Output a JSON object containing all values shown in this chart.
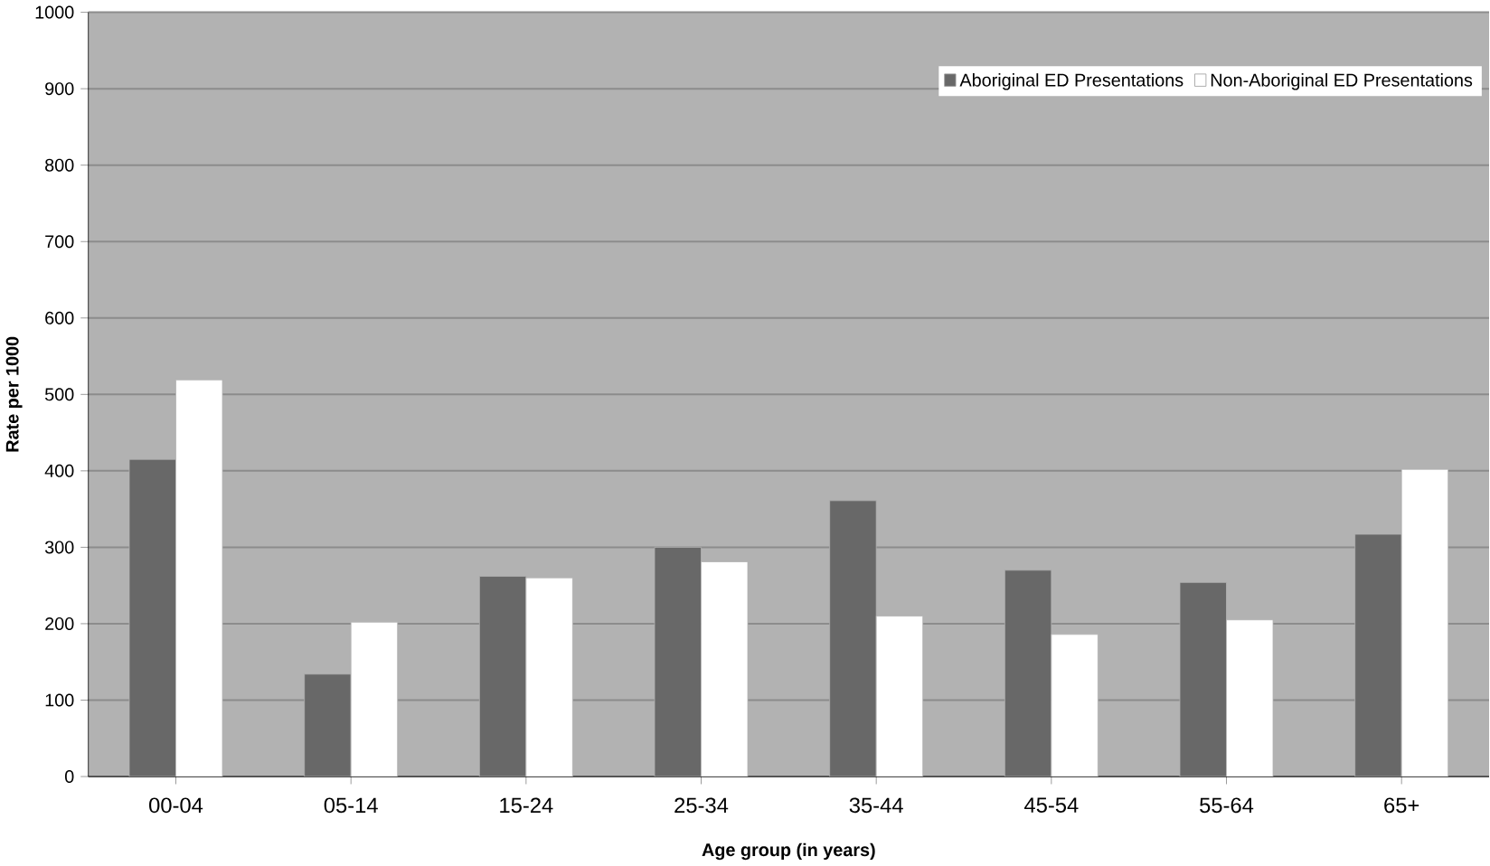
{
  "chart_data": {
    "type": "bar",
    "xlabel": "Age group (in years)",
    "ylabel": "Rate per 1000",
    "categories": [
      "00-04",
      "05-14",
      "15-24",
      "25-34",
      "35-44",
      "45-54",
      "55-64",
      "65+"
    ],
    "series": [
      {
        "name": "Aboriginal ED Presentations",
        "color": "#686868",
        "values": [
          415,
          134,
          262,
          300,
          361,
          270,
          254,
          317
        ]
      },
      {
        "name": "Non-Aboriginal ED Presentations",
        "color": "#ffffff",
        "values": [
          519,
          202,
          260,
          281,
          210,
          186,
          205,
          402
        ]
      }
    ],
    "ylim": [
      0,
      1000
    ],
    "yticks": [
      0,
      100,
      200,
      300,
      400,
      500,
      600,
      700,
      800,
      900,
      1000
    ],
    "grid": "y",
    "legend": "top right"
  }
}
